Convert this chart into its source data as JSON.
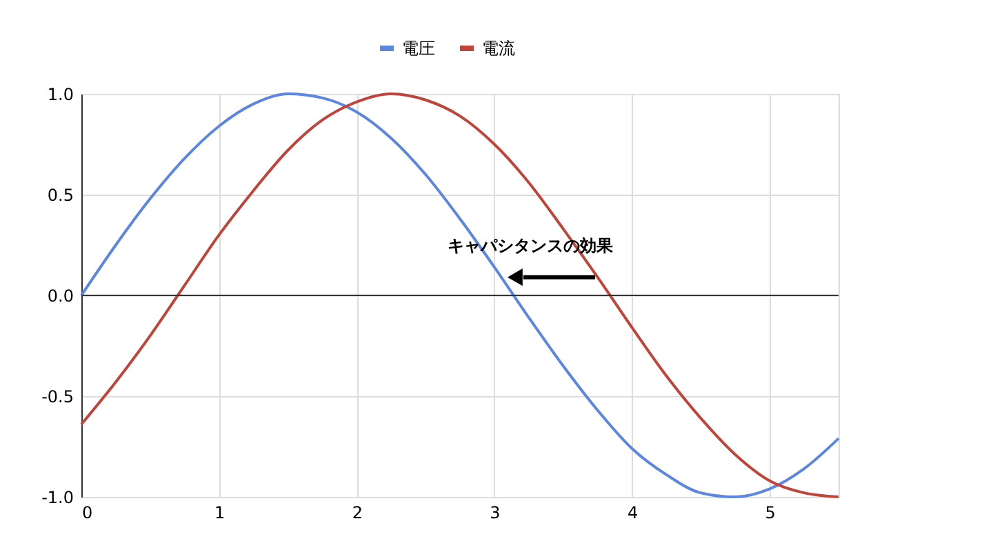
{
  "chart_data": {
    "type": "line",
    "legend": "top",
    "grid": true,
    "marker": "none",
    "line_style": "solid",
    "xlim": [
      0,
      5.5
    ],
    "xticks": [
      0,
      1,
      2,
      3,
      4,
      5
    ],
    "ylim": [
      -1,
      1
    ],
    "yticks": [
      {
        "value": -1,
        "label": "-1.0"
      },
      {
        "value": -0.5,
        "label": "-0.5"
      },
      {
        "value": 0,
        "label": "0.0"
      },
      {
        "value": 0.5,
        "label": "0.5"
      },
      {
        "value": 1,
        "label": "1.0"
      }
    ],
    "x": [
      0,
      0.25,
      0.5,
      0.75,
      1,
      1.25,
      1.5,
      1.75,
      2,
      2.25,
      2.5,
      2.75,
      3,
      3.25,
      3.5,
      3.75,
      4,
      4.25,
      4.5,
      4.75,
      5,
      5.25,
      5.5
    ],
    "series": [
      {
        "name": "電圧",
        "color": "#5b87e0",
        "values": [
          0,
          0.25,
          0.48,
          0.68,
          0.84,
          0.95,
          1.0,
          0.98,
          0.91,
          0.78,
          0.6,
          0.38,
          0.14,
          -0.11,
          -0.35,
          -0.57,
          -0.76,
          -0.89,
          -0.98,
          -1.0,
          -0.96,
          -0.86,
          -0.71
        ]
      },
      {
        "name": "電流",
        "color": "#c0443a",
        "values": [
          -0.64,
          -0.43,
          -0.2,
          0.05,
          0.3,
          0.52,
          0.72,
          0.87,
          0.96,
          1.0,
          0.97,
          0.89,
          0.75,
          0.56,
          0.33,
          0.09,
          -0.16,
          -0.4,
          -0.61,
          -0.79,
          -0.92,
          -0.98,
          -1.0
        ]
      }
    ],
    "ref_lines": [
      {
        "axis": "y",
        "value": 0,
        "color": "#333333"
      }
    ],
    "annotations": [
      {
        "text": "キャパシタンスの効果",
        "x": 3.07,
        "y": 0.09
      }
    ]
  }
}
